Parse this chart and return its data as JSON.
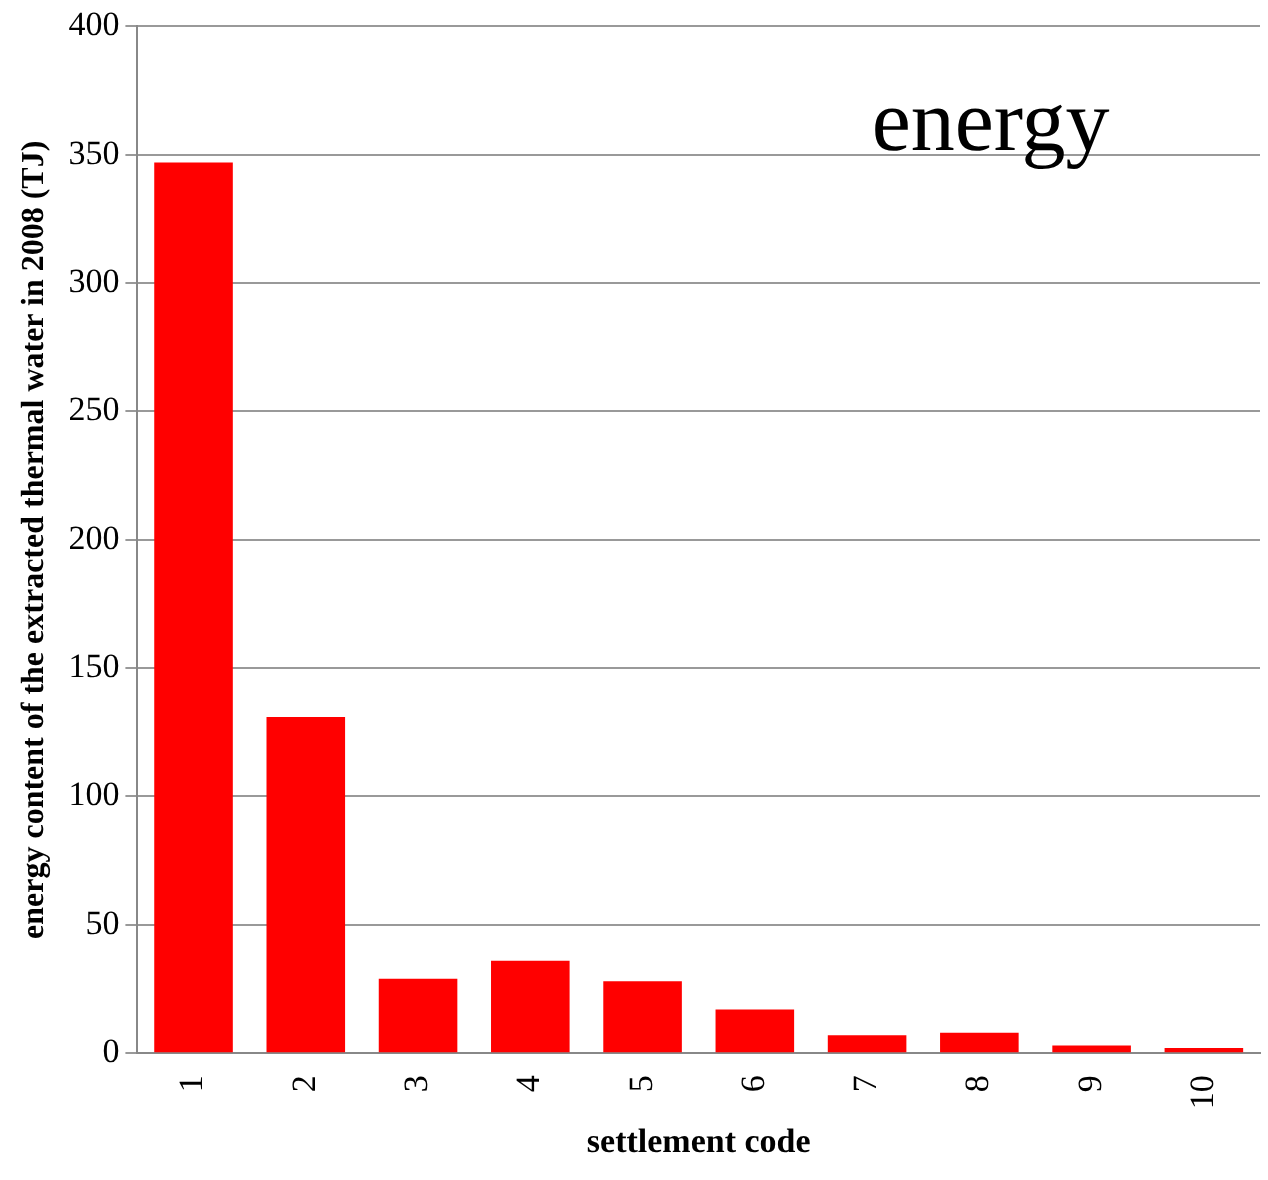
{
  "chart_data": {
    "type": "bar",
    "title": "energy",
    "xlabel": "settlement code",
    "ylabel": "energy content of the extracted thermal water in 2008 (TJ)",
    "categories": [
      "1",
      "2",
      "3",
      "4",
      "5",
      "6",
      "7",
      "8",
      "9",
      "10"
    ],
    "values": [
      347,
      131,
      29,
      36,
      28,
      17,
      7,
      8,
      3,
      2
    ],
    "color": "#ff0000",
    "ylim": [
      0,
      400
    ],
    "yticks": [
      0,
      50,
      100,
      150,
      200,
      250,
      300,
      350,
      400
    ],
    "grid": "y",
    "legend": false
  }
}
